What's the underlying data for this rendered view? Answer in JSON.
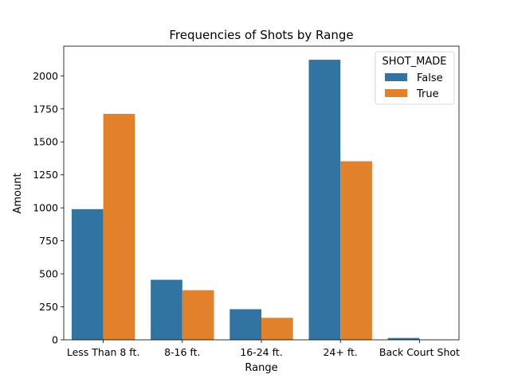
{
  "chart_data": {
    "type": "bar",
    "title": "Frequencies of Shots by Range",
    "xlabel": "Range",
    "ylabel": "Amount",
    "categories": [
      "Less Than 8 ft.",
      "8-16 ft.",
      "16-24 ft.",
      "24+ ft.",
      "Back Court Shot"
    ],
    "series": [
      {
        "name": "False",
        "color": "#3274a1",
        "values": [
          990,
          455,
          232,
          2122,
          14
        ]
      },
      {
        "name": "True",
        "color": "#e1812c",
        "values": [
          1712,
          376,
          167,
          1353,
          1
        ]
      }
    ],
    "ylim": [
      0,
      2225
    ],
    "yticks": [
      0,
      250,
      500,
      750,
      1000,
      1250,
      1500,
      1750,
      2000
    ],
    "legend": {
      "title": "SHOT_MADE",
      "placement": "top-right"
    },
    "grid": false
  }
}
